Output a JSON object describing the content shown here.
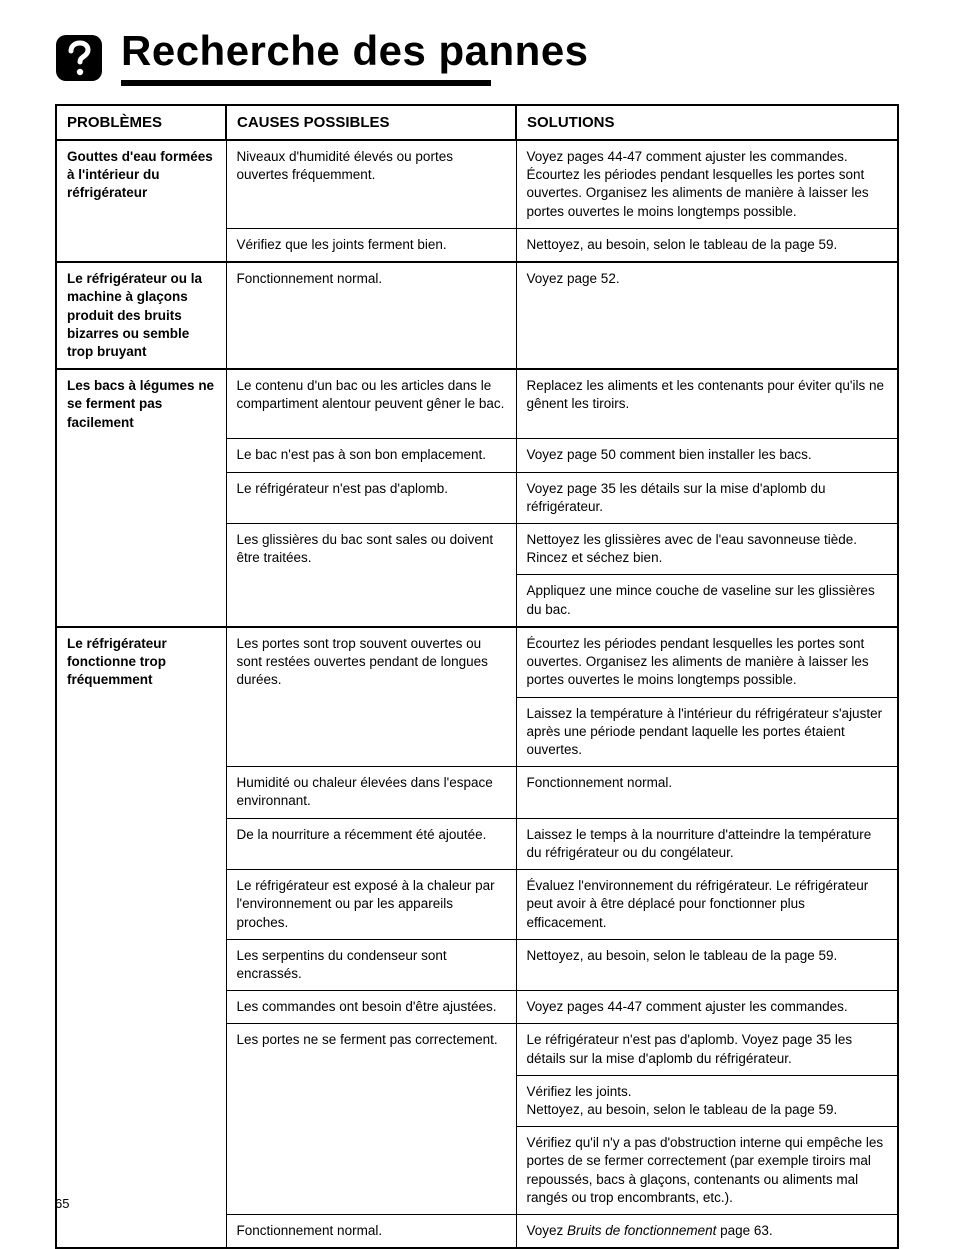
{
  "page": {
    "title": "Recherche des pannes",
    "page_number": "65",
    "underline_color": "#000000",
    "icon_bg": "#000000",
    "icon_fg": "#ffffff"
  },
  "table": {
    "headers": [
      "PROBLÈMES",
      "CAUSES POSSIBLES",
      "SOLUTIONS"
    ],
    "rows": [
      {
        "problem": "Gouttes d'eau formées à l'intérieur du réfrigérateur",
        "cause": "Niveaux d'humidité élevés ou portes ouvertes fréquemment.",
        "solution": "Voyez pages 44-47 comment ajuster les commandes. Écourtez les périodes pendant lesquelles les portes sont ouvertes. Organisez les aliments de manière à laisser les portes ouvertes le moins longtemps possible.",
        "sep": "light"
      },
      {
        "problem": "",
        "cause": "Vérifiez que les joints ferment bien.",
        "solution": "Nettoyez, au besoin, selon le tableau de la page 59.",
        "sep": "heavy"
      },
      {
        "problem": "Le réfrigérateur ou la machine à glaçons produit des bruits bizarres ou semble trop bruyant",
        "cause": "Fonctionnement normal.",
        "solution": "Voyez page 52.",
        "sep": "heavy"
      },
      {
        "problem": "Les bacs à légumes ne se ferment pas facilement",
        "cause": "Le contenu d'un bac ou les articles dans le compartiment alentour peuvent gêner le bac.",
        "solution": "Replacez les aliments et les contenants pour éviter qu'ils ne gênent les tiroirs.",
        "sep": "light"
      },
      {
        "problem": "",
        "cause": "Le bac n'est pas à son bon emplacement.",
        "solution": "Voyez page 50 comment bien installer les bacs.",
        "sep": "light"
      },
      {
        "problem": "",
        "cause": "Le réfrigérateur n'est pas d'aplomb.",
        "solution": "Voyez page 35 les détails sur la mise d'aplomb du réfrigérateur.",
        "sep": "light"
      },
      {
        "problem": "",
        "cause": "Les glissières du bac sont sales ou doivent être traitées.",
        "solution": "Nettoyez les glissières avec de l'eau savonneuse tiède. Rincez et séchez bien.",
        "sep": "sol"
      },
      {
        "problem": "",
        "cause": "",
        "solution": "Appliquez une mince couche de vaseline sur les glissières du bac.",
        "sep": "heavy"
      },
      {
        "problem": "Le réfrigérateur fonctionne trop fréquemment",
        "cause": "Les portes sont trop souvent ouvertes ou sont restées ouvertes pendant de longues durées.",
        "solution": "Écourtez les périodes pendant lesquelles les portes sont ouvertes.  Organisez les aliments de manière à laisser les portes ouvertes le moins longtemps possible.",
        "sep": "sol"
      },
      {
        "problem": "",
        "cause": "",
        "solution": "Laissez la température à l'intérieur du réfrigérateur s'ajuster après une période pendant laquelle les portes étaient ouvertes.",
        "sep": "light"
      },
      {
        "problem": "",
        "cause": "Humidité ou chaleur élevées dans l'espace environnant.",
        "solution": "Fonctionnement normal.",
        "sep": "light"
      },
      {
        "problem": "",
        "cause": "De la nourriture a récemment été ajoutée.",
        "solution": "Laissez le temps à la nourriture d'atteindre la température du réfrigérateur ou du congélateur.",
        "sep": "light"
      },
      {
        "problem": "",
        "cause": "Le réfrigérateur est exposé à la chaleur par l'environnement ou par les appareils proches.",
        "solution": "Évaluez l'environnement du réfrigérateur. Le réfrigérateur peut avoir à être déplacé pour fonctionner plus efficacement.",
        "sep": "light"
      },
      {
        "problem": "",
        "cause": "Les serpentins du condenseur sont encrassés.",
        "solution": "Nettoyez, au besoin, selon le tableau de la page 59.",
        "sep": "light"
      },
      {
        "problem": "",
        "cause": "Les commandes ont besoin d'être ajustées.",
        "solution": "Voyez pages 44-47 comment ajuster les commandes.",
        "sep": "light"
      },
      {
        "problem": "",
        "cause": "Les portes ne se ferment pas correctement.",
        "solution": "Le réfrigérateur n'est pas d'aplomb. Voyez page 35 les détails sur la mise d'aplomb du réfrigérateur.",
        "sep": "sol"
      },
      {
        "problem": "",
        "cause": "",
        "solution": "Vérifiez les joints.\nNettoyez, au besoin, selon le tableau de la page 59.",
        "sep": "sol"
      },
      {
        "problem": "",
        "cause": "",
        "solution": "Vérifiez qu'il n'y a pas d'obstruction interne qui empêche les portes de se fermer correctement (par exemple tiroirs mal repoussés, bacs à glaçons, contenants ou aliments mal rangés ou trop encombrants, etc.).",
        "sep": "light"
      },
      {
        "problem": "",
        "cause": "Fonctionnement normal.",
        "solution_html": "Voyez <i>Bruits de fonctionnement</i> page 63.",
        "sep": "heavy"
      }
    ]
  }
}
